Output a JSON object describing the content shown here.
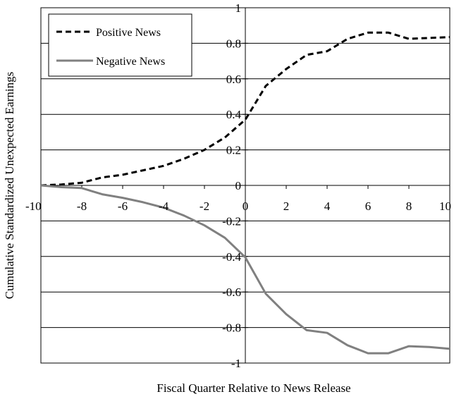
{
  "chart_data": {
    "type": "line",
    "title": "",
    "xlabel": "Fiscal Quarter Relative to News Release",
    "ylabel": "Cumulative Standardized Unexpected Earnings",
    "xlim": [
      -10,
      10
    ],
    "ylim": [
      -1,
      1
    ],
    "x_ticks": [
      "-10",
      "-8",
      "-6",
      "-4",
      "-2",
      "0",
      "2",
      "4",
      "6",
      "8",
      "10"
    ],
    "y_ticks": [
      "1",
      "0.8",
      "0.6",
      "0.4",
      "0.2",
      "0",
      "-0.2",
      "-0.4",
      "-0.6",
      "-0.8",
      "-1"
    ],
    "grid": "horizontal",
    "legend_position": "top-left",
    "x": [
      -10,
      -9,
      -8,
      -7,
      -6,
      -5,
      -4,
      -3,
      -2,
      -1,
      0,
      1,
      2,
      3,
      4,
      5,
      6,
      7,
      8,
      9,
      10
    ],
    "series": [
      {
        "name": "Positive News",
        "style": "dashed",
        "color": "#000000",
        "values": [
          0.0,
          0.005,
          0.015,
          0.045,
          0.06,
          0.085,
          0.11,
          0.15,
          0.2,
          0.27,
          0.37,
          0.56,
          0.655,
          0.735,
          0.755,
          0.825,
          0.86,
          0.86,
          0.825,
          0.83,
          0.835
        ]
      },
      {
        "name": "Negative News",
        "style": "solid",
        "color": "#808080",
        "values": [
          0.0,
          -0.01,
          -0.015,
          -0.05,
          -0.07,
          -0.095,
          -0.125,
          -0.17,
          -0.225,
          -0.295,
          -0.405,
          -0.61,
          -0.725,
          -0.815,
          -0.83,
          -0.9,
          -0.945,
          -0.945,
          -0.905,
          -0.91,
          -0.92
        ]
      }
    ]
  }
}
